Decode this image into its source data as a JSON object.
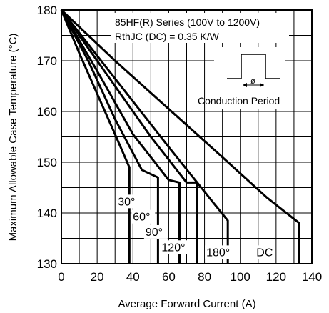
{
  "chart_data": {
    "type": "line",
    "annotations": {
      "series_title": "85HF(R) Series (100V to 1200V)",
      "rth": "RthJC (DC) = 0.35 K/W",
      "conduction": "Conduction Period",
      "phi": "ø"
    },
    "xlabel": "Average Forward Current (A)",
    "ylabel": "Maximum Allowable Case Temperature (°C)",
    "xlim": [
      0,
      140
    ],
    "ylim": [
      130,
      180
    ],
    "xticks": [
      "0",
      "20",
      "40",
      "60",
      "80",
      "100",
      "120",
      "140"
    ],
    "yticks": [
      "130",
      "140",
      "150",
      "160",
      "170",
      "180"
    ],
    "grid": true,
    "series": [
      {
        "name": "30°",
        "points": [
          [
            0,
            180
          ],
          [
            10,
            171.5
          ],
          [
            20,
            163.5
          ],
          [
            30,
            155.5
          ],
          [
            38,
            149
          ],
          [
            38,
            130
          ]
        ]
      },
      {
        "name": "60°",
        "points": [
          [
            0,
            180
          ],
          [
            15,
            170
          ],
          [
            30,
            158.5
          ],
          [
            45,
            148.5
          ],
          [
            54,
            147
          ],
          [
            54,
            130
          ]
        ]
      },
      {
        "name": "90°",
        "points": [
          [
            0,
            180
          ],
          [
            20,
            168
          ],
          [
            40,
            155.5
          ],
          [
            60,
            146.5
          ],
          [
            66,
            146
          ],
          [
            66,
            130
          ]
        ]
      },
      {
        "name": "120°",
        "points": [
          [
            0,
            180
          ],
          [
            25,
            167.5
          ],
          [
            50,
            155
          ],
          [
            70,
            146
          ],
          [
            76,
            146
          ],
          [
            76,
            130
          ]
        ]
      },
      {
        "name": "180°",
        "points": [
          [
            0,
            180
          ],
          [
            30,
            166.5
          ],
          [
            60,
            153
          ],
          [
            85,
            142
          ],
          [
            93,
            138.5
          ],
          [
            93,
            130
          ]
        ]
      },
      {
        "name": "DC",
        "points": [
          [
            0,
            180
          ],
          [
            30,
            170
          ],
          [
            60,
            160.5
          ],
          [
            90,
            151
          ],
          [
            115,
            143
          ],
          [
            133,
            138
          ],
          [
            133,
            130
          ]
        ]
      }
    ]
  }
}
